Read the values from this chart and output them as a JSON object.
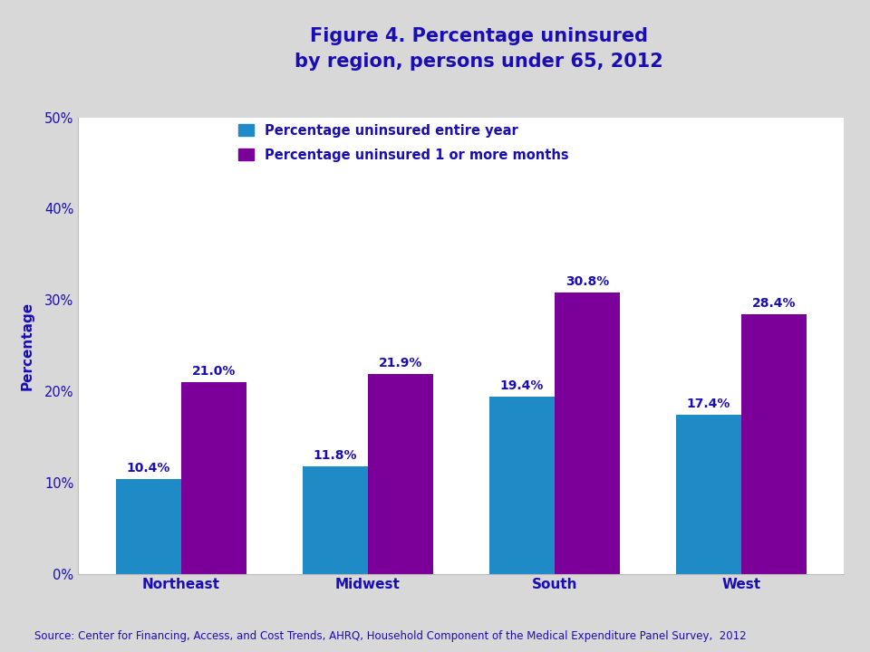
{
  "title_line1": "Figure 4. Percentage uninsured",
  "title_line2": "by region, persons under 65, 2012",
  "categories": [
    "Northeast",
    "Midwest",
    "South",
    "West"
  ],
  "series": [
    {
      "label": "Percentage uninsured entire year",
      "values": [
        10.4,
        11.8,
        19.4,
        17.4
      ],
      "color": "#1e8ac6"
    },
    {
      "label": "Percentage uninsured 1 or more months",
      "values": [
        21.0,
        21.9,
        30.8,
        28.4
      ],
      "color": "#7b0099"
    }
  ],
  "ylabel": "Percentage",
  "ylim": [
    0,
    50
  ],
  "yticks": [
    0,
    10,
    20,
    30,
    40,
    50
  ],
  "ytick_labels": [
    "0%",
    "10%",
    "20%",
    "30%",
    "40%",
    "50%"
  ],
  "bar_width": 0.35,
  "title_color": "#1a0db5",
  "label_color": "#1a0db5",
  "axis_label_color": "#1a0db5",
  "tick_label_color": "#1a0db5",
  "source_text": "Source: Center for Financing, Access, and Cost Trends, AHRQ, Household Component of the Medical Expenditure Panel Survey,  2012",
  "header_bg_color": "#d8d8d8",
  "plot_bg_color": "#ffffff",
  "fig_bg_color": "#d8d8d8",
  "title_fontsize": 15,
  "legend_fontsize": 10.5,
  "axis_fontsize": 11,
  "tick_fontsize": 10.5,
  "source_fontsize": 8.5,
  "value_label_fontsize": 10,
  "separator_color": "#aaaaaa"
}
